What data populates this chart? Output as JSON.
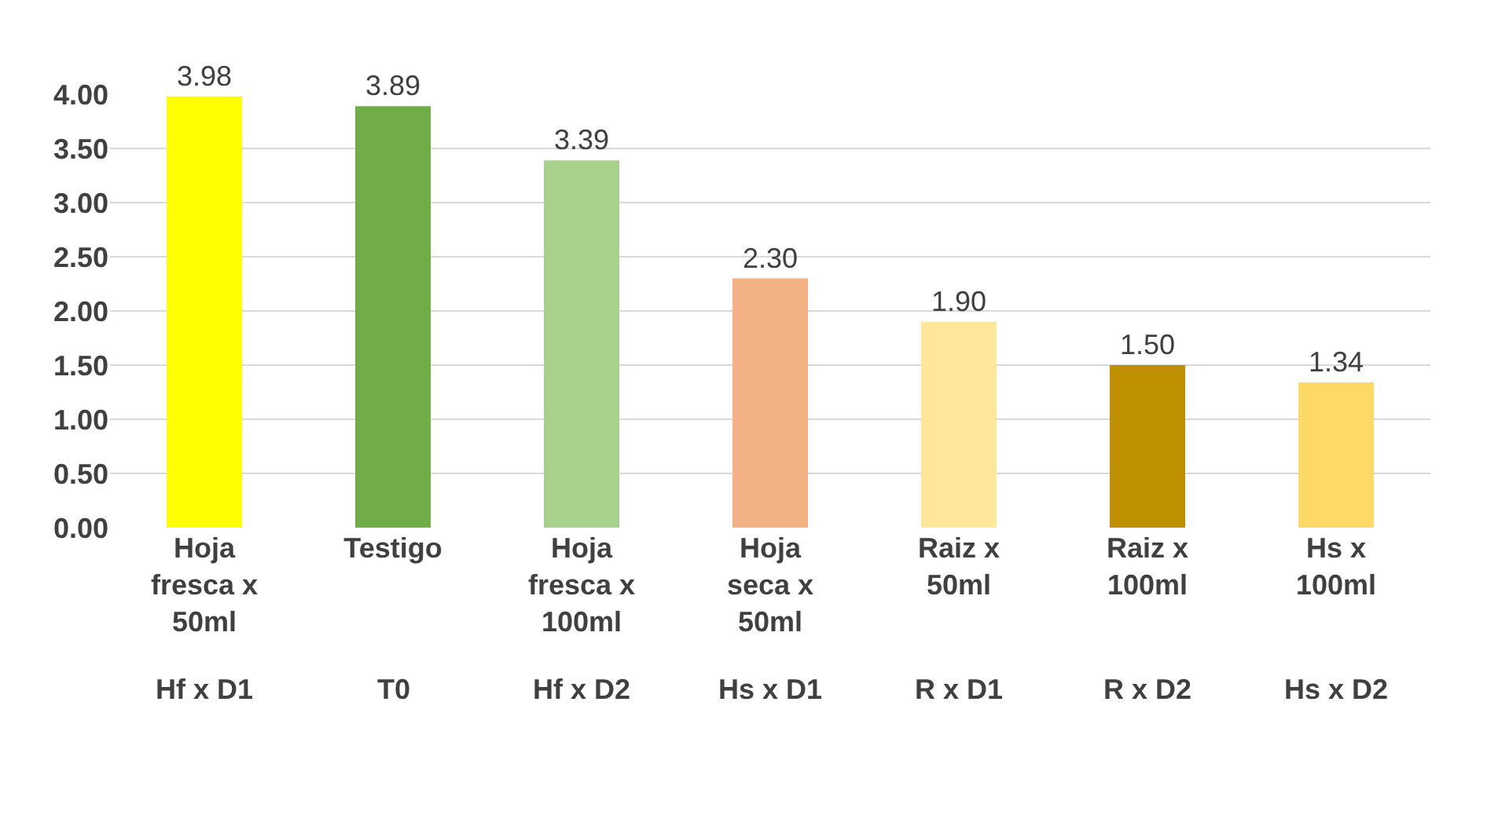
{
  "chart_data": {
    "type": "bar",
    "categories": [
      "Hoja fresca x 50ml",
      "Testigo",
      "Hoja fresca x 100ml",
      "Hoja seca x 50ml",
      "Raiz x 50ml",
      "Raiz x 100ml",
      "Hs x 100ml"
    ],
    "values": [
      3.98,
      3.89,
      3.39,
      2.3,
      1.9,
      1.5,
      1.34
    ],
    "colors": [
      "#ffff00",
      "#70ad47",
      "#a9d18e",
      "#f4b183",
      "#ffe699",
      "#bf9000",
      "#ffd966"
    ],
    "ylim": [
      0,
      4.0
    ],
    "yticks": [
      {
        "value": 0,
        "label": "0.00"
      },
      {
        "value": 0.5,
        "label": "0.50"
      },
      {
        "value": 1,
        "label": "1.00"
      },
      {
        "value": 1.5,
        "label": "1.50"
      },
      {
        "value": 2,
        "label": "2.00"
      },
      {
        "value": 2.5,
        "label": "2.50"
      },
      {
        "value": 3,
        "label": "3.00"
      },
      {
        "value": 3.5,
        "label": "3.50"
      },
      {
        "value": 4,
        "label": "4.00"
      }
    ],
    "value_labels": [
      "3.98",
      "3.89",
      "3.39",
      "2.30",
      "1.90",
      "1.50",
      "1.34"
    ],
    "annotations": [
      "Hf x D1",
      "T0",
      "Hf x D2",
      "Hs x D1",
      "R x D1",
      "R x D2",
      "Hs x D2"
    ],
    "grid": "y"
  }
}
